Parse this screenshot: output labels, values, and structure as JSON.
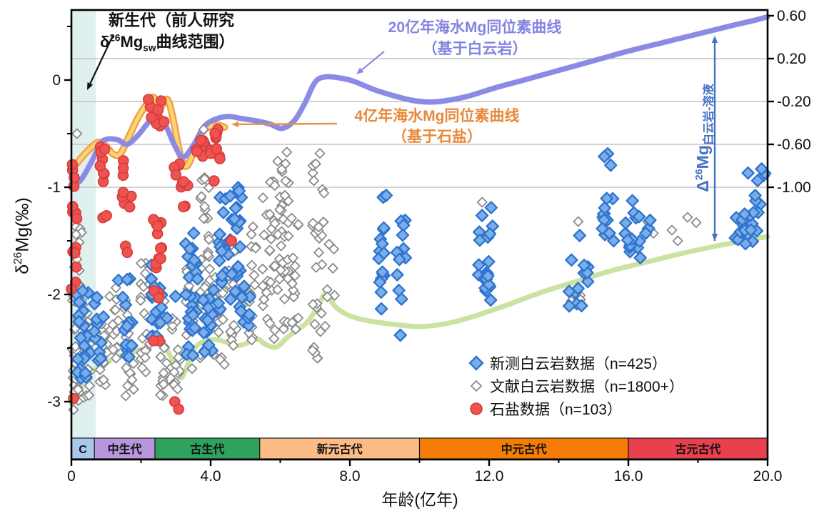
{
  "page": {
    "bg": "#ffffff"
  },
  "annotation_cenozoic": {
    "line1": "新生代（前人研究",
    "d": "δ",
    "sup": "26",
    "mg": "Mg",
    "sub": "sw",
    "rest": "曲线范围）"
  },
  "label_curve20": {
    "line1": "20亿年海水Mg同位素曲线",
    "line2": "（基于白云岩）"
  },
  "label_curve4": {
    "line1": "4亿年海水Mg同位素曲线",
    "line2": "（基于石盐）"
  },
  "label_delta": {
    "d": "Δ",
    "sup": "26",
    "mg": "Mg",
    "sub": "白云岩-溶液"
  },
  "y_left_title": {
    "d": "δ",
    "sup": "26",
    "rest": "Mg(‰)"
  },
  "x_axis": {
    "title": "年龄(亿年)",
    "tick_values": [
      0,
      4,
      8,
      12,
      16,
      20
    ],
    "tick_labels": [
      "0",
      "4.0",
      "8.0",
      "12.0",
      "16.0",
      "20.0"
    ],
    "minor_values": [
      2,
      6,
      10,
      14,
      18
    ],
    "range": [
      0,
      20
    ]
  },
  "y_left_axis": {
    "tick_values": [
      0,
      -1,
      -2,
      -3
    ],
    "tick_labels": [
      "0",
      "-1",
      "-2",
      "-3"
    ],
    "minor_values": [
      0.5,
      -0.5,
      -1.5,
      -2.5
    ],
    "range": [
      -3.5,
      0.65
    ]
  },
  "y_right_axis": {
    "tick_values": [
      0.6,
      0.2,
      -0.2,
      -0.6,
      -1.0
    ],
    "tick_labels": [
      "0.60",
      "0.20",
      "-0.20",
      "-0.60",
      "-1.00"
    ],
    "gridline_values": [
      0.2,
      -0.2,
      -0.6,
      -1.0
    ]
  },
  "eras": [
    {
      "label": "C",
      "from": 0,
      "to": 0.66,
      "color": "#a9c7e9"
    },
    {
      "label": "中生代",
      "from": 0.66,
      "to": 2.4,
      "color": "#b796dd"
    },
    {
      "label": "古生代",
      "from": 2.4,
      "to": 5.41,
      "color": "#2fa35e"
    },
    {
      "label": "新元古代",
      "from": 5.41,
      "to": 10,
      "color": "#fbbd85"
    },
    {
      "label": "中元古代",
      "from": 10,
      "to": 16,
      "color": "#f57d05"
    },
    {
      "label": "古元古代",
      "from": 16,
      "to": 20,
      "color": "#e9404e"
    }
  ],
  "legend": {
    "items": [
      {
        "icon": "blue-diamond",
        "label": "新测白云岩数据（n=425）"
      },
      {
        "icon": "open-diamond",
        "label": "文献白云岩数据（n=1800+）"
      },
      {
        "icon": "red-circle",
        "label": "石盐数据（n=103）"
      }
    ]
  },
  "colors": {
    "curve_dolomite": "#8b8be6",
    "curve_halite_outer": "#efa04a",
    "curve_halite_inner": "#fcd671",
    "curve_green": "#cbe2a3",
    "blue_fill": "#7aaee8",
    "blue_stroke": "#2f74d0",
    "gray_stroke": "#8a8a8a",
    "red_fill": "#ef5350",
    "red_stroke": "#d63a3a",
    "teal_band": "#d9edec",
    "gridline": "#c4c4c4",
    "delta_arrow": "#4472c4",
    "label_curve20_color": "#8383e2",
    "label_curve4_color": "#e8883a",
    "axis_color": "#111111"
  },
  "chart_data": {
    "type": "scatter",
    "x_label": "年龄(亿年)",
    "y_left_label": "δ26Mg(‰)",
    "y_right_label": "Δ26Mg(白云岩-溶液)",
    "x_range": [
      0,
      20
    ],
    "y_left_range": [
      -3.5,
      0.65
    ],
    "grid": "horizontal-only",
    "curves": [
      {
        "name": "20亿年海水Mg同位素曲线（基于白云岩）",
        "style": "dolomite",
        "points": [
          [
            0,
            -0.97
          ],
          [
            0.25,
            -0.94
          ],
          [
            0.55,
            -0.78
          ],
          [
            0.85,
            -0.59
          ],
          [
            1.05,
            -0.55
          ],
          [
            1.35,
            -0.56
          ],
          [
            1.6,
            -0.6
          ],
          [
            1.9,
            -0.52
          ],
          [
            2.2,
            -0.4
          ],
          [
            2.45,
            -0.33
          ],
          [
            2.7,
            -0.42
          ],
          [
            2.95,
            -0.6
          ],
          [
            3.2,
            -0.72
          ],
          [
            3.5,
            -0.61
          ],
          [
            3.8,
            -0.44
          ],
          [
            4.1,
            -0.37
          ],
          [
            4.5,
            -0.34
          ],
          [
            4.9,
            -0.36
          ],
          [
            5.3,
            -0.38
          ],
          [
            5.7,
            -0.41
          ],
          [
            6.05,
            -0.45
          ],
          [
            6.4,
            -0.38
          ],
          [
            6.7,
            -0.22
          ],
          [
            7.0,
            -0.02
          ],
          [
            7.3,
            0.03
          ],
          [
            7.7,
            0.02
          ],
          [
            8.1,
            -0.01
          ],
          [
            8.7,
            -0.09
          ],
          [
            9.3,
            -0.15
          ],
          [
            9.8,
            -0.19
          ],
          [
            10.3,
            -0.205
          ],
          [
            10.8,
            -0.19
          ],
          [
            11.4,
            -0.15
          ],
          [
            12.2,
            -0.07
          ],
          [
            13.0,
            0.0
          ],
          [
            14.0,
            0.09
          ],
          [
            15.0,
            0.18
          ],
          [
            16.0,
            0.27
          ],
          [
            17.0,
            0.35
          ],
          [
            18.0,
            0.43
          ],
          [
            19.0,
            0.51
          ],
          [
            19.6,
            0.555
          ],
          [
            20,
            0.59
          ]
        ]
      },
      {
        "name": "4亿年海水Mg同位素曲线（基于石盐）",
        "style": "halite",
        "points": [
          [
            0,
            -0.84
          ],
          [
            0.3,
            -0.72
          ],
          [
            0.6,
            -0.62
          ],
          [
            0.8,
            -0.58
          ],
          [
            1.0,
            -0.62
          ],
          [
            1.2,
            -0.69
          ],
          [
            1.4,
            -0.69
          ],
          [
            1.65,
            -0.53
          ],
          [
            1.9,
            -0.36
          ],
          [
            2.15,
            -0.23
          ],
          [
            2.35,
            -0.16
          ],
          [
            2.55,
            -0.25
          ],
          [
            2.75,
            -0.18
          ],
          [
            2.9,
            -0.33
          ],
          [
            3.1,
            -0.66
          ],
          [
            3.25,
            -0.8
          ],
          [
            3.4,
            -0.76
          ],
          [
            3.6,
            -0.58
          ],
          [
            3.8,
            -0.47
          ],
          [
            4.0,
            -0.43
          ],
          [
            4.2,
            -0.42
          ],
          [
            4.4,
            -0.44
          ]
        ]
      },
      {
        "name": "白云岩-溶液分馏下限曲线",
        "style": "green",
        "points": [
          [
            0,
            -3.02
          ],
          [
            0.3,
            -2.85
          ],
          [
            0.6,
            -2.72
          ],
          [
            0.9,
            -2.66
          ],
          [
            1.2,
            -2.6
          ],
          [
            1.5,
            -2.56
          ],
          [
            1.8,
            -2.53
          ],
          [
            2.1,
            -2.5
          ],
          [
            2.4,
            -2.42
          ],
          [
            2.6,
            -2.44
          ],
          [
            2.8,
            -2.55
          ],
          [
            3.0,
            -2.68
          ],
          [
            3.15,
            -2.78
          ],
          [
            3.35,
            -2.65
          ],
          [
            3.55,
            -2.5
          ],
          [
            3.8,
            -2.44
          ],
          [
            4.1,
            -2.42
          ],
          [
            4.4,
            -2.44
          ],
          [
            4.7,
            -2.48
          ],
          [
            5.0,
            -2.46
          ],
          [
            5.3,
            -2.41
          ],
          [
            5.6,
            -2.47
          ],
          [
            5.9,
            -2.49
          ],
          [
            6.2,
            -2.4
          ],
          [
            6.5,
            -2.33
          ],
          [
            6.8,
            -2.25
          ],
          [
            7.1,
            -2.1
          ],
          [
            7.3,
            -2.0
          ],
          [
            7.6,
            -2.12
          ],
          [
            8.0,
            -2.2
          ],
          [
            8.6,
            -2.25
          ],
          [
            9.3,
            -2.28
          ],
          [
            10.0,
            -2.3
          ],
          [
            10.8,
            -2.27
          ],
          [
            11.6,
            -2.2
          ],
          [
            12.5,
            -2.1
          ],
          [
            13.5,
            -1.98
          ],
          [
            14.5,
            -1.88
          ],
          [
            15.5,
            -1.78
          ],
          [
            16.5,
            -1.7
          ],
          [
            17.5,
            -1.62
          ],
          [
            18.5,
            -1.55
          ],
          [
            19.3,
            -1.5
          ],
          [
            20,
            -1.46
          ]
        ]
      }
    ],
    "series": [
      {
        "name": "新测白云岩数据",
        "n": 425,
        "marker": "blue-diamond",
        "seed": 7,
        "clusters": [
          [
            0.15,
            0.55,
            -1.95,
            -2.8,
            22
          ],
          [
            0.62,
            0.95,
            -2.0,
            -2.65,
            12
          ],
          [
            1.35,
            1.75,
            -1.85,
            -2.6,
            16
          ],
          [
            2.25,
            2.55,
            -1.5,
            -2.4,
            18
          ],
          [
            2.5,
            3.0,
            -2.0,
            -2.3,
            6
          ],
          [
            3.25,
            3.65,
            -1.25,
            -2.35,
            26
          ],
          [
            3.3,
            3.5,
            -2.45,
            -2.6,
            3
          ],
          [
            3.75,
            4.1,
            -1.85,
            -2.55,
            14
          ],
          [
            4.2,
            4.9,
            -1.0,
            -2.15,
            40
          ],
          [
            4.85,
            5.15,
            -1.9,
            -2.35,
            8
          ],
          [
            8.8,
            9.05,
            -1.0,
            -2.2,
            16
          ],
          [
            9.35,
            9.6,
            -1.15,
            -2.1,
            12
          ],
          [
            11.65,
            12.1,
            -1.15,
            -2.2,
            20
          ],
          [
            14.3,
            15.0,
            -1.6,
            -2.12,
            12
          ],
          [
            15.25,
            15.6,
            -1.1,
            -1.55,
            12
          ],
          [
            15.3,
            15.55,
            -0.63,
            -0.82,
            3
          ],
          [
            15.9,
            16.35,
            -1.1,
            -1.68,
            16
          ],
          [
            16.35,
            16.65,
            -1.15,
            -1.45,
            4
          ],
          [
            18.9,
            19.4,
            -1.2,
            -1.5,
            8
          ],
          [
            19.3,
            19.93,
            -0.75,
            -1.55,
            20
          ]
        ],
        "singles": [
          [
            9.45,
            -2.38
          ],
          [
            14.6,
            -1.45
          ]
        ]
      },
      {
        "name": "文献白云岩数据",
        "n": "1800+",
        "marker": "open-diamond",
        "seed": 42,
        "clusters": [
          [
            0.02,
            0.35,
            -2.0,
            -3.08,
            45
          ],
          [
            0.05,
            0.3,
            -1.3,
            -1.98,
            12
          ],
          [
            0.38,
            0.6,
            -2.15,
            -2.95,
            18
          ],
          [
            0.78,
            1.05,
            -2.25,
            -2.9,
            16
          ],
          [
            1.08,
            1.35,
            -1.9,
            -2.6,
            14
          ],
          [
            1.52,
            1.8,
            -2.05,
            -3.0,
            22
          ],
          [
            1.98,
            2.25,
            -1.6,
            -2.75,
            20
          ],
          [
            2.48,
            2.75,
            -1.9,
            -2.98,
            18
          ],
          [
            2.88,
            3.15,
            -2.2,
            -2.95,
            16
          ],
          [
            3.28,
            3.55,
            -1.7,
            -2.78,
            18
          ],
          [
            3.65,
            4.0,
            -0.85,
            -2.6,
            32
          ],
          [
            3.7,
            3.85,
            -0.45,
            -0.62,
            3
          ],
          [
            4.08,
            4.4,
            -1.35,
            -2.68,
            22
          ],
          [
            4.48,
            4.75,
            -1.55,
            -2.5,
            14
          ],
          [
            4.98,
            5.3,
            -1.35,
            -2.55,
            18
          ],
          [
            5.48,
            5.85,
            -0.95,
            -2.5,
            28
          ],
          [
            5.92,
            6.25,
            -0.5,
            -2.55,
            34
          ],
          [
            6.28,
            6.55,
            -1.25,
            -2.35,
            14
          ],
          [
            6.92,
            7.3,
            -0.55,
            -2.6,
            30
          ],
          [
            7.35,
            7.58,
            -1.45,
            -2.05,
            6
          ],
          [
            14.35,
            14.75,
            -1.85,
            -2.1,
            4
          ]
        ],
        "singles": [
          [
            0.16,
            -0.5
          ],
          [
            11.8,
            -1.14
          ],
          [
            14.56,
            -1.32
          ],
          [
            16.55,
            -1.32
          ],
          [
            16.72,
            -1.43
          ],
          [
            17.25,
            -1.4
          ],
          [
            17.42,
            -1.5
          ],
          [
            17.7,
            -1.28
          ],
          [
            17.95,
            -1.33
          ]
        ]
      },
      {
        "name": "石盐数据",
        "n": 103,
        "marker": "red-circle",
        "seed": 13,
        "clusters": [
          [
            0.02,
            0.2,
            -0.78,
            -2.05,
            14
          ],
          [
            0.82,
            1.15,
            -0.6,
            -0.98,
            8
          ],
          [
            0.88,
            1.02,
            -1.25,
            -1.38,
            2
          ],
          [
            1.45,
            1.72,
            -0.7,
            -1.2,
            9
          ],
          [
            1.5,
            1.65,
            -1.5,
            -1.62,
            2
          ],
          [
            2.15,
            2.7,
            -0.16,
            -0.45,
            10
          ],
          [
            2.35,
            2.6,
            -1.25,
            -1.8,
            12
          ],
          [
            2.35,
            2.55,
            -1.95,
            -2.5,
            5
          ],
          [
            2.95,
            3.35,
            -0.76,
            -1.0,
            8
          ],
          [
            3.2,
            3.3,
            -1.1,
            -1.2,
            2
          ],
          [
            3.55,
            3.85,
            -0.5,
            -0.72,
            8
          ],
          [
            3.95,
            4.3,
            -0.45,
            -0.75,
            12
          ]
        ],
        "singles": [
          [
            0.0,
            -1.95
          ],
          [
            0.06,
            -2.97
          ],
          [
            2.97,
            -3.0
          ],
          [
            3.08,
            -3.07
          ],
          [
            4.1,
            -0.94
          ],
          [
            4.6,
            -1.5
          ]
        ]
      }
    ]
  }
}
